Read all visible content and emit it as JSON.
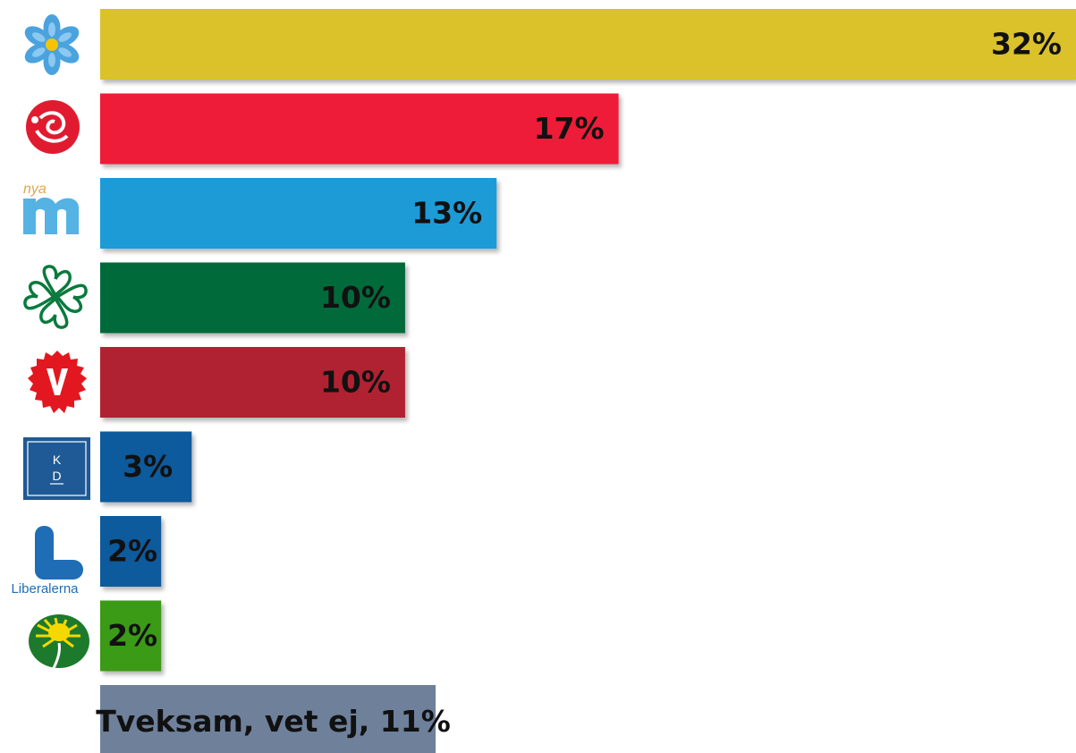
{
  "chart_data": {
    "type": "bar",
    "orientation": "horizontal",
    "categories": [
      "SD",
      "S",
      "M",
      "C",
      "V",
      "KD",
      "L",
      "MP",
      "Tveksam, vet ej"
    ],
    "values": [
      32,
      17,
      13,
      10,
      10,
      3,
      2,
      2,
      11
    ],
    "labels": [
      "32%",
      "17%",
      "13%",
      "10%",
      "10%",
      "3%",
      "2%",
      "2%",
      "Tveksam, vet ej, 11%"
    ],
    "colors": [
      "#dbc12c",
      "#ee1c38",
      "#1e9bd7",
      "#046b3a",
      "#b02233",
      "#0a5a9c",
      "#0a5a9c",
      "#3a9a12",
      "#6e809a"
    ],
    "logos": [
      "sd-blue-anemone-icon",
      "s-red-rose-icon",
      "nya-m-logo-icon",
      "c-four-leaf-clover-icon",
      "v-red-carnation-icon",
      "kd-square-logo-icon",
      "l-liberalerna-logo-icon",
      "mp-dandelion-icon",
      ""
    ],
    "logo_texts": {
      "m": "nya",
      "kd": [
        "K",
        "D"
      ],
      "l": "Liberalerna"
    },
    "xlim": [
      0,
      32
    ],
    "grid": false,
    "legend": "none"
  }
}
